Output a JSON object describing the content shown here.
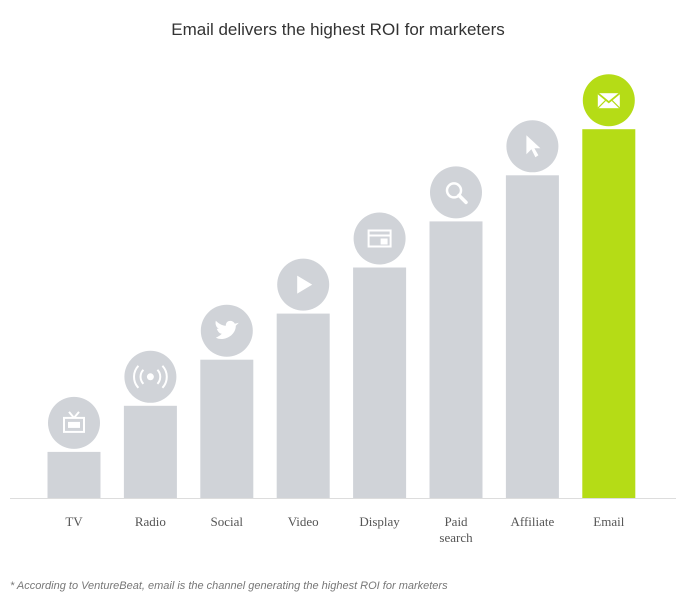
{
  "title": "Email delivers the highest ROI for marketers",
  "footnote": "* According to VentureBeat, email is the channel generating the highest ROI for marketers",
  "colors": {
    "bar": "#d0d3d8",
    "highlight": "#b5dc16",
    "icon_glyph": "#ffffff",
    "baseline": "#dddddd"
  },
  "chart_data": {
    "type": "bar",
    "title": "Email delivers the highest ROI for marketers",
    "categories": [
      "TV",
      "Radio",
      "Social",
      "Video",
      "Display",
      "Paid search",
      "Affiliate",
      "Email"
    ],
    "category_label_lines": [
      [
        "TV"
      ],
      [
        "Radio"
      ],
      [
        "Social"
      ],
      [
        "Video"
      ],
      [
        "Display"
      ],
      [
        "Paid",
        "search"
      ],
      [
        "Affiliate"
      ],
      [
        "Email"
      ]
    ],
    "values": [
      1,
      2,
      3,
      4,
      5,
      6,
      7,
      8
    ],
    "icons": [
      "tv-icon",
      "radio-icon",
      "twitter-icon",
      "play-icon",
      "display-icon",
      "search-icon",
      "cursor-icon",
      "envelope-icon"
    ],
    "highlight_index": 7,
    "ylim": [
      0,
      8
    ],
    "y_axis_shown": false,
    "grid": false,
    "legend": "none"
  }
}
